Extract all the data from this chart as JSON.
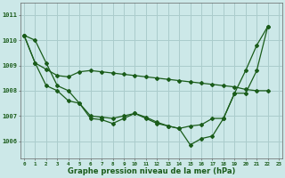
{
  "xlabel": "Graphe pression niveau de la mer (hPa)",
  "background_color": "#cce8e8",
  "grid_color": "#aacccc",
  "line_color": "#1a5c1a",
  "x_ticks": [
    0,
    1,
    2,
    3,
    4,
    5,
    6,
    7,
    8,
    9,
    10,
    11,
    12,
    13,
    14,
    15,
    16,
    17,
    18,
    19,
    20,
    21,
    22,
    23
  ],
  "y_ticks": [
    1006,
    1007,
    1008,
    1009,
    1010,
    1011
  ],
  "ylim": [
    1005.3,
    1011.5
  ],
  "xlim": [
    -0.3,
    23.3
  ],
  "series1_x": [
    0,
    1,
    2,
    3,
    4,
    5,
    6,
    7,
    8,
    9,
    10,
    11,
    12,
    13,
    14,
    15,
    16,
    17,
    18,
    19,
    20,
    21,
    22
  ],
  "series1_y": [
    1010.2,
    1010.0,
    1009.1,
    1008.2,
    1008.0,
    1007.5,
    1006.9,
    1006.85,
    1006.7,
    1006.9,
    1007.1,
    1006.9,
    1006.7,
    1006.6,
    1006.5,
    1005.85,
    1006.1,
    1006.2,
    1006.9,
    1007.9,
    1008.8,
    1009.8,
    1010.55
  ],
  "series2_x": [
    0,
    1,
    2,
    3,
    4,
    5,
    6,
    7,
    8,
    9,
    10,
    11,
    12,
    13,
    14,
    15,
    16,
    17,
    18,
    19,
    20,
    21,
    22
  ],
  "series2_y": [
    1010.2,
    1009.1,
    1008.85,
    1008.6,
    1008.55,
    1008.75,
    1008.8,
    1008.75,
    1008.7,
    1008.65,
    1008.6,
    1008.55,
    1008.5,
    1008.45,
    1008.4,
    1008.35,
    1008.3,
    1008.25,
    1008.2,
    1008.15,
    1008.05,
    1008.0,
    1008.0
  ],
  "series3_x": [
    0,
    1,
    2,
    3,
    4,
    5,
    6,
    7,
    8,
    9,
    10,
    11,
    12,
    13,
    14,
    15,
    16,
    17,
    18,
    19,
    20,
    21,
    22
  ],
  "series3_y": [
    1010.2,
    1009.1,
    1008.2,
    1008.0,
    1007.6,
    1007.5,
    1007.0,
    1006.95,
    1006.9,
    1007.0,
    1007.1,
    1006.95,
    1006.75,
    1006.6,
    1006.5,
    1006.6,
    1006.65,
    1006.9,
    1006.9,
    1007.9,
    1007.9,
    1008.8,
    1010.55
  ]
}
